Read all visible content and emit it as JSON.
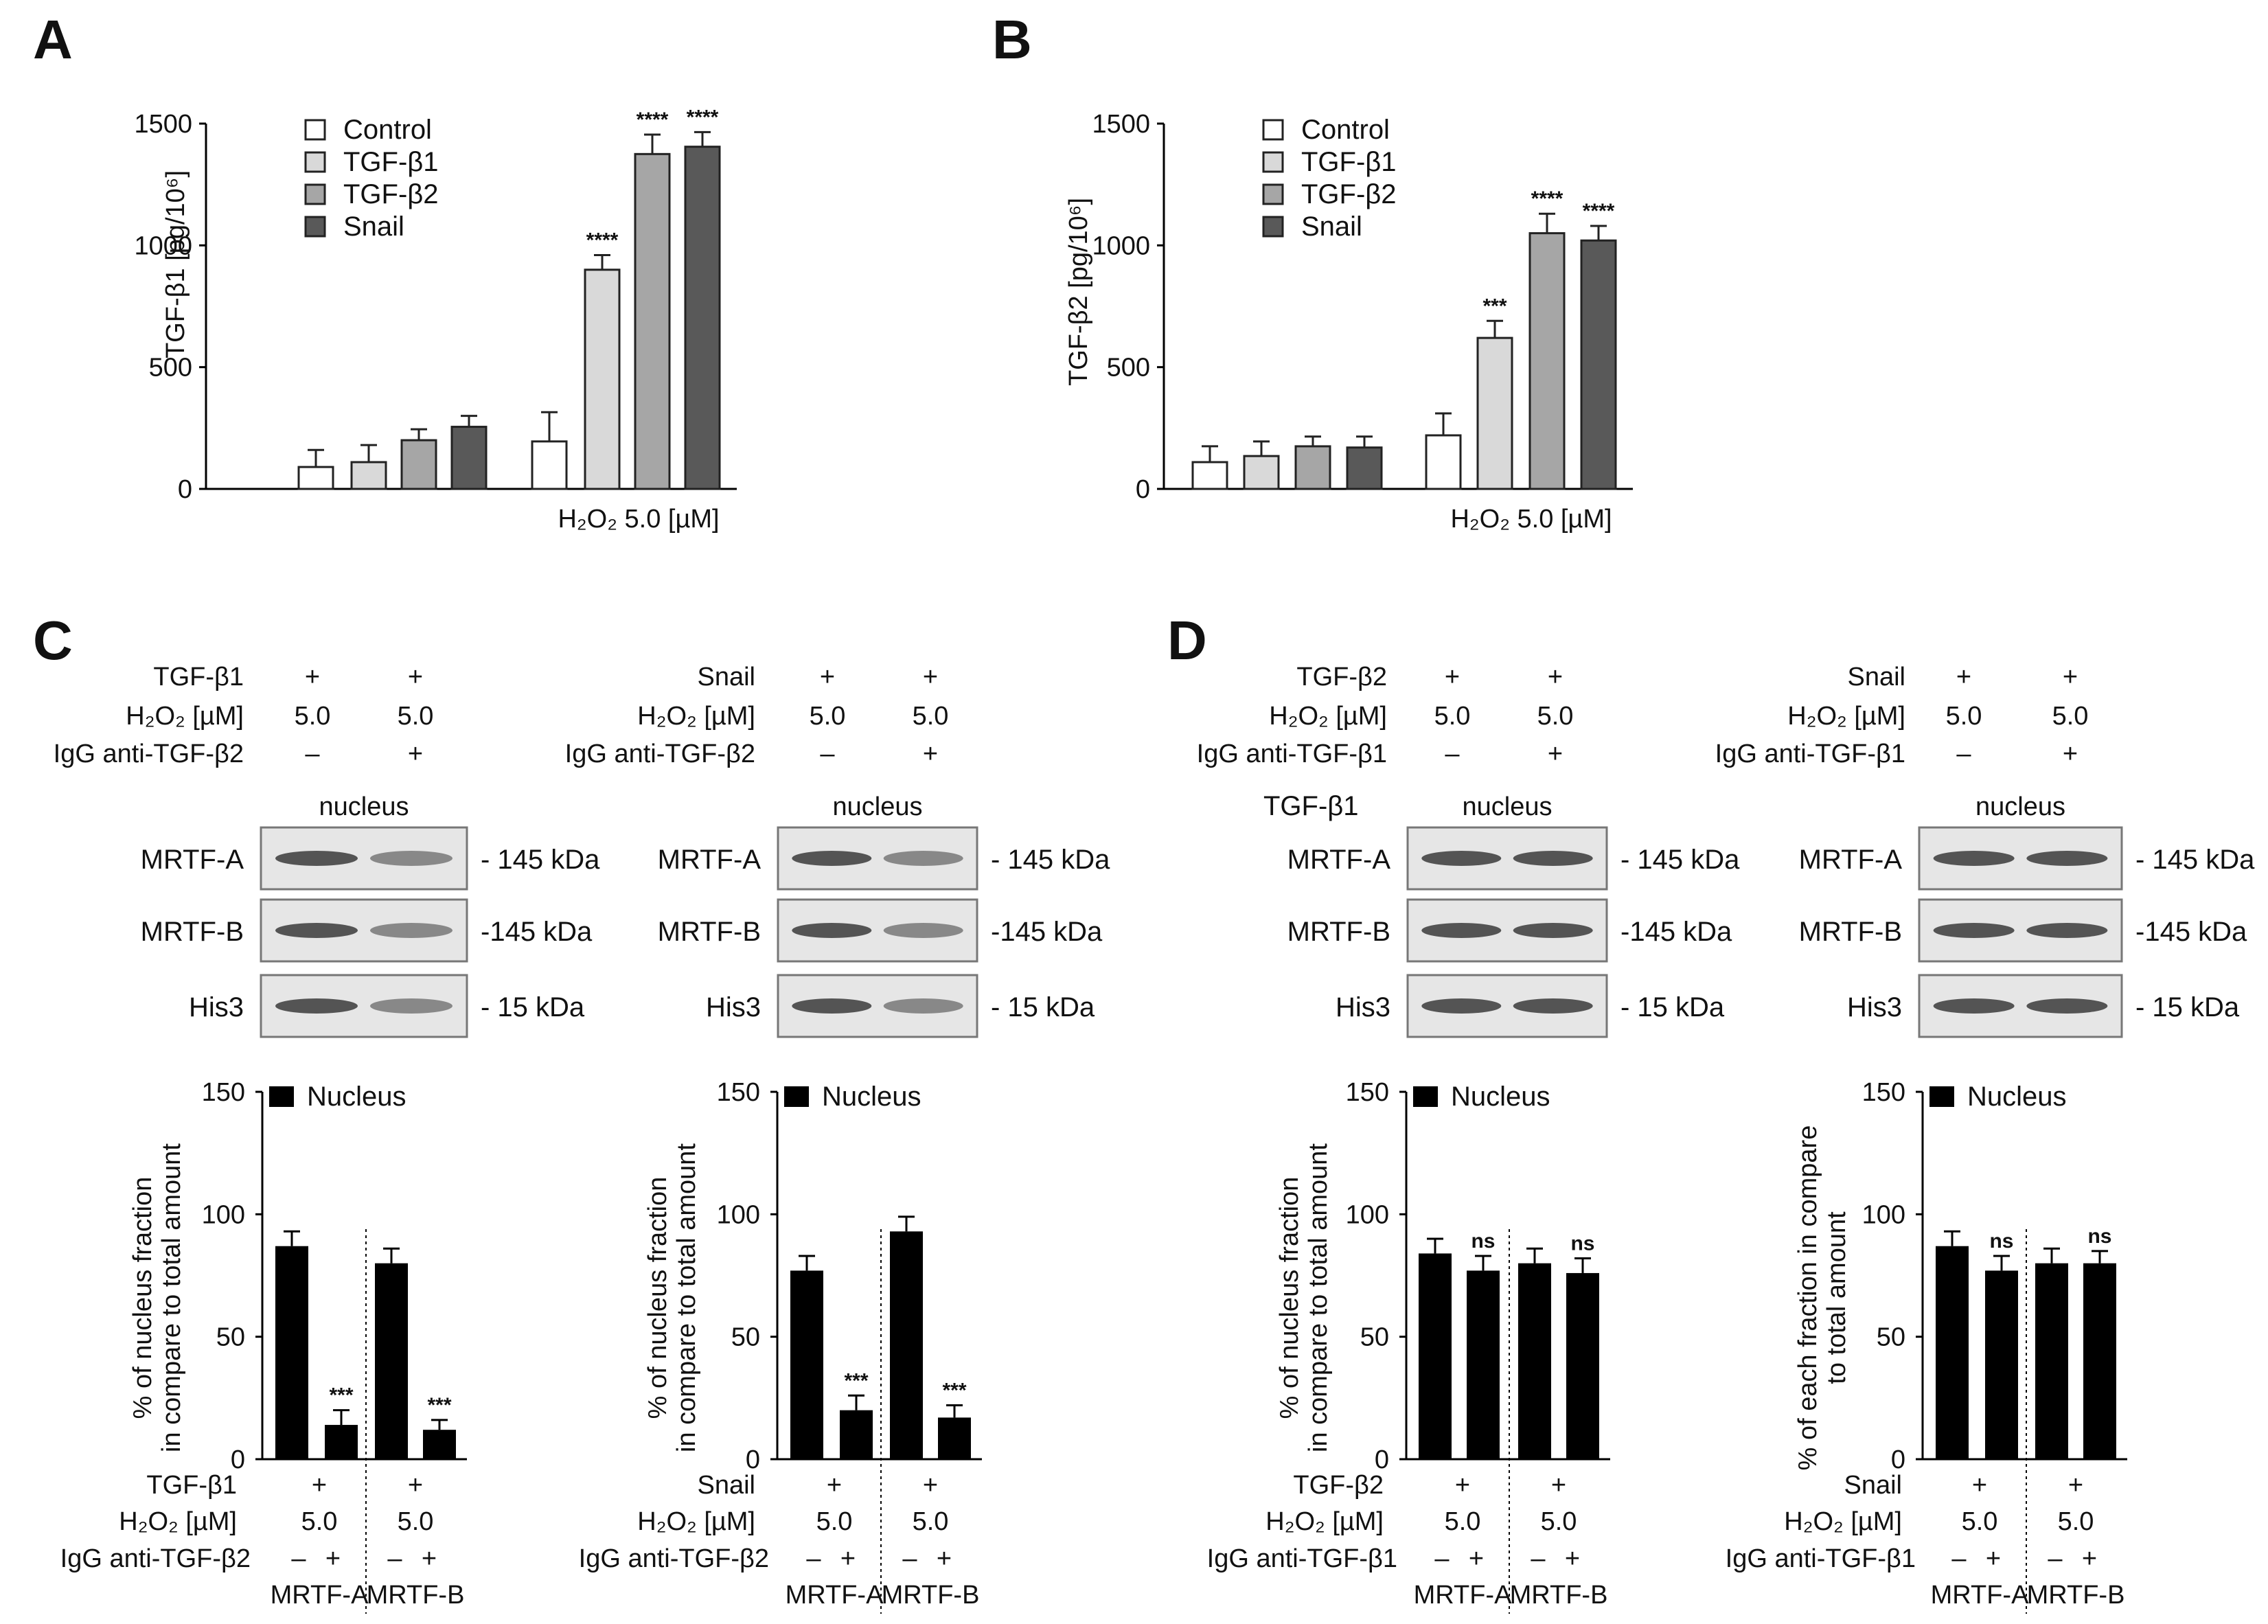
{
  "colors": {
    "control": "#ffffff",
    "tgfb1": "#d9d9d9",
    "tgfb2": "#a6a6a6",
    "snail": "#595959",
    "black": "#000000"
  },
  "chart_data": [
    {
      "id": "A",
      "type": "bar",
      "panel": "A",
      "ylabel": "TGF-β1 [pg/10⁶]",
      "ylim": [
        0,
        1500
      ],
      "yticks": [
        "0",
        "500",
        "1000",
        "1500"
      ],
      "legend": [
        "Control",
        "TGF-β1",
        "TGF-β2",
        "Snail"
      ],
      "groups": [
        "",
        "H₂O₂ 5.0 [µM]"
      ],
      "values": [
        [
          90,
          110,
          200,
          255
        ],
        [
          195,
          900,
          1375,
          1405
        ]
      ],
      "errors": [
        [
          70,
          70,
          45,
          45
        ],
        [
          120,
          60,
          80,
          60
        ]
      ],
      "stars": [
        [
          "",
          "",
          "",
          ""
        ],
        [
          "",
          "****",
          "****",
          "****"
        ]
      ]
    },
    {
      "id": "B",
      "type": "bar",
      "panel": "B",
      "ylabel": "TGF-β2 [pg/10⁶]",
      "ylim": [
        0,
        1500
      ],
      "yticks": [
        "0",
        "500",
        "1000",
        "1500"
      ],
      "legend": [
        "Control",
        "TGF-β1",
        "TGF-β2",
        "Snail"
      ],
      "groups": [
        "",
        "H₂O₂ 5.0 [µM]"
      ],
      "values": [
        [
          110,
          135,
          175,
          170
        ],
        [
          220,
          620,
          1050,
          1020
        ]
      ],
      "errors": [
        [
          65,
          60,
          40,
          45
        ],
        [
          90,
          70,
          80,
          60
        ]
      ],
      "stars": [
        [
          "",
          "",
          "",
          ""
        ],
        [
          "",
          "***",
          "****",
          "****"
        ]
      ]
    },
    {
      "id": "C1",
      "type": "bar",
      "ylim": [
        0,
        150
      ],
      "yticks": [
        "0",
        "50",
        "100",
        "150"
      ],
      "ylabel_lines": [
        "% of nucleus fraction",
        "in compare to total amount"
      ],
      "legend": "Nucleus",
      "values": [
        87,
        14,
        80,
        12
      ],
      "errors": [
        6,
        6,
        6,
        4
      ],
      "stars": [
        "",
        "***",
        "",
        "***"
      ],
      "treatment_label": "TGF-β1",
      "h2o2_label": "H₂O₂ [µM]",
      "h2o2_value": "5.0",
      "igg_label": "IgG anti-TGF-β2",
      "igg_values": [
        "–",
        "+",
        "–",
        "+"
      ],
      "groups": [
        "MRTF-A",
        "MRTF-B"
      ]
    },
    {
      "id": "C2",
      "type": "bar",
      "ylim": [
        0,
        150
      ],
      "yticks": [
        "0",
        "50",
        "100",
        "150"
      ],
      "ylabel_lines": [
        "% of nucleus fraction",
        "in compare to total amount"
      ],
      "legend": "Nucleus",
      "values": [
        77,
        20,
        93,
        17
      ],
      "errors": [
        6,
        6,
        6,
        5
      ],
      "stars": [
        "",
        "***",
        "",
        "***"
      ],
      "treatment_label": "Snail",
      "h2o2_label": "H₂O₂ [µM]",
      "h2o2_value": "5.0",
      "igg_label": "IgG anti-TGF-β2",
      "igg_values": [
        "–",
        "+",
        "–",
        "+"
      ],
      "groups": [
        "MRTF-A",
        "MRTF-B"
      ]
    },
    {
      "id": "D1",
      "type": "bar",
      "ylim": [
        0,
        150
      ],
      "yticks": [
        "0",
        "50",
        "100",
        "150"
      ],
      "ylabel_lines": [
        "% of nucleus fraction",
        "in compare to total amount"
      ],
      "legend": "Nucleus",
      "values": [
        84,
        77,
        80,
        76
      ],
      "errors": [
        6,
        6,
        6,
        6
      ],
      "stars": [
        "",
        "ns",
        "",
        "ns"
      ],
      "treatment_label": "TGF-β2",
      "h2o2_label": "H₂O₂ [µM]",
      "h2o2_value": "5.0",
      "igg_label": "IgG anti-TGF-β1",
      "igg_values": [
        "–",
        "+",
        "–",
        "+"
      ],
      "groups": [
        "MRTF-A",
        "MRTF-B"
      ]
    },
    {
      "id": "D2",
      "type": "bar",
      "ylim": [
        0,
        150
      ],
      "yticks": [
        "0",
        "50",
        "100",
        "150"
      ],
      "ylabel_lines": [
        "% of each fraction in compare",
        "to total amount"
      ],
      "legend": "Nucleus",
      "values": [
        87,
        77,
        80,
        80
      ],
      "errors": [
        6,
        6,
        6,
        5
      ],
      "stars": [
        "",
        "ns",
        "",
        "ns"
      ],
      "treatment_label": "Snail",
      "h2o2_label": "H₂O₂ [µM]",
      "h2o2_value": "5.0",
      "igg_label": "IgG anti-TGF-β1",
      "igg_values": [
        "–",
        "+",
        "–",
        "+"
      ],
      "groups": [
        "MRTF-A",
        "MRTF-B"
      ]
    }
  ],
  "blots": [
    {
      "id": "C1",
      "panel": "C",
      "treatment": "TGF-β1",
      "h2o2_label": "H₂O₂ [µM]",
      "h2o2": [
        "5.0",
        "5.0"
      ],
      "igg_label": "IgG anti-TGF-β2",
      "igg": [
        "–",
        "+"
      ],
      "plus": [
        "+",
        "+"
      ],
      "compartment": "nucleus",
      "extra_label": "",
      "rows": [
        {
          "protein": "MRTF-A",
          "size": "- 145 kDa"
        },
        {
          "protein": "MRTF-B",
          "size": "-145 kDa"
        },
        {
          "protein": "His3",
          "size": "-  15 kDa"
        }
      ]
    },
    {
      "id": "C2",
      "treatment": "Snail",
      "h2o2_label": "H₂O₂ [µM]",
      "h2o2": [
        "5.0",
        "5.0"
      ],
      "igg_label": "IgG anti-TGF-β2",
      "igg": [
        "–",
        "+"
      ],
      "plus": [
        "+",
        "+"
      ],
      "compartment": "nucleus",
      "extra_label": "",
      "rows": [
        {
          "protein": "MRTF-A",
          "size": "- 145 kDa"
        },
        {
          "protein": "MRTF-B",
          "size": "-145 kDa"
        },
        {
          "protein": "His3",
          "size": "-  15 kDa"
        }
      ]
    },
    {
      "id": "D1",
      "panel": "D",
      "treatment": "TGF-β2",
      "h2o2_label": "H₂O₂ [µM]",
      "h2o2": [
        "5.0",
        "5.0"
      ],
      "igg_label": "IgG anti-TGF-β1",
      "igg": [
        "–",
        "+"
      ],
      "plus": [
        "+",
        "+"
      ],
      "compartment": "nucleus",
      "extra_label": "TGF-β1",
      "rows": [
        {
          "protein": "MRTF-A",
          "size": "- 145 kDa"
        },
        {
          "protein": "MRTF-B",
          "size": "-145 kDa"
        },
        {
          "protein": "His3",
          "size": "-  15 kDa"
        }
      ]
    },
    {
      "id": "D2",
      "treatment": "Snail",
      "h2o2_label": "H₂O₂ [µM]",
      "h2o2": [
        "5.0",
        "5.0"
      ],
      "igg_label": "IgG anti-TGF-β1",
      "igg": [
        "–",
        "+"
      ],
      "plus": [
        "+",
        "+"
      ],
      "compartment": "nucleus",
      "extra_label": "",
      "rows": [
        {
          "protein": "MRTF-A",
          "size": "- 145 kDa"
        },
        {
          "protein": "MRTF-B",
          "size": "-145 kDa"
        },
        {
          "protein": "His3",
          "size": "-  15 kDa"
        }
      ]
    }
  ]
}
